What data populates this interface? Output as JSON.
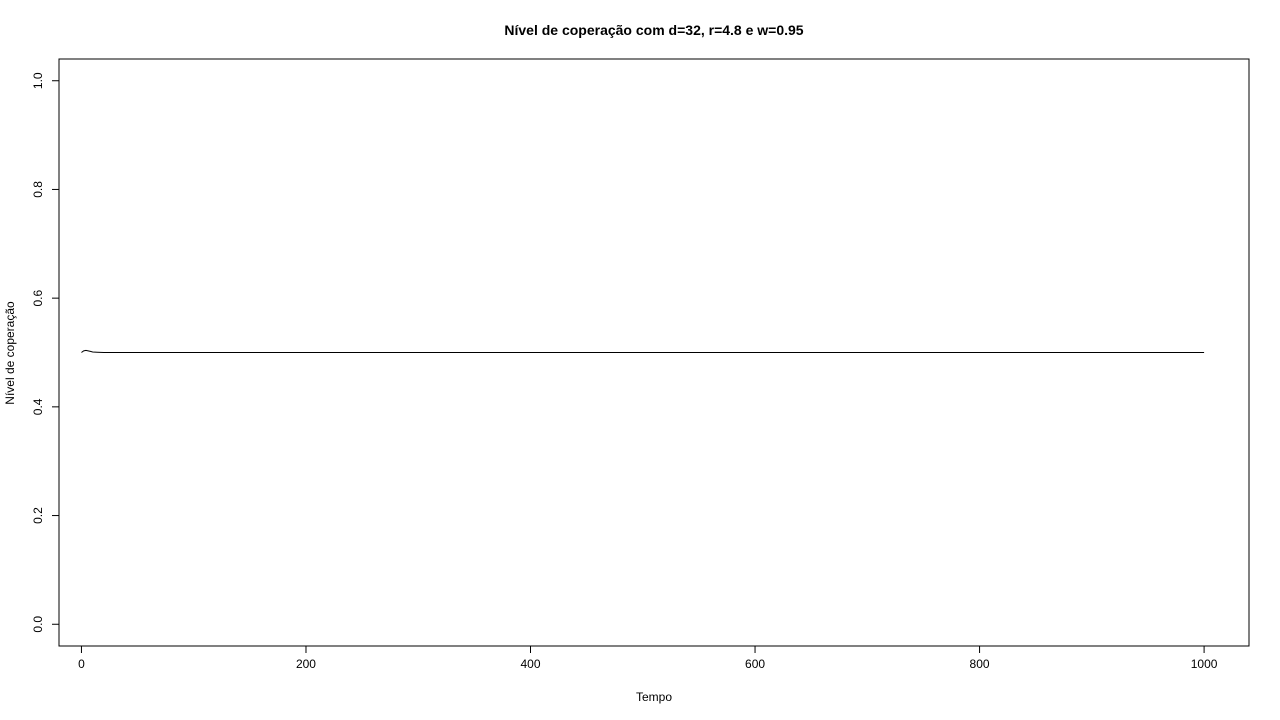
{
  "chart_data": {
    "type": "line",
    "title": "Nível de coperação com d=32, r=4.8 e w=0.95",
    "xlabel": "Tempo",
    "ylabel": "Nível de coperação",
    "xlim": [
      -20,
      1040
    ],
    "ylim": [
      -0.04,
      1.04
    ],
    "x_ticks": [
      0,
      200,
      400,
      600,
      800,
      1000
    ],
    "y_ticks": [
      0.0,
      0.2,
      0.4,
      0.6,
      0.8,
      1.0
    ],
    "x_tick_labels": [
      "0",
      "200",
      "400",
      "600",
      "800",
      "1000"
    ],
    "y_tick_labels": [
      "0.0",
      "0.2",
      "0.4",
      "0.6",
      "0.8",
      "1.0"
    ],
    "grid": false,
    "line_color": "#000000",
    "series": [
      {
        "x": [
          0,
          2,
          4,
          6,
          8,
          10,
          14,
          20,
          30,
          50,
          100,
          200,
          300,
          400,
          500,
          600,
          700,
          800,
          900,
          1000
        ],
        "values": [
          0.5,
          0.503,
          0.504,
          0.503,
          0.502,
          0.501,
          0.5005,
          0.5,
          0.5,
          0.5,
          0.5,
          0.5,
          0.5,
          0.5,
          0.5,
          0.5,
          0.5,
          0.5,
          0.5,
          0.5
        ]
      }
    ]
  }
}
